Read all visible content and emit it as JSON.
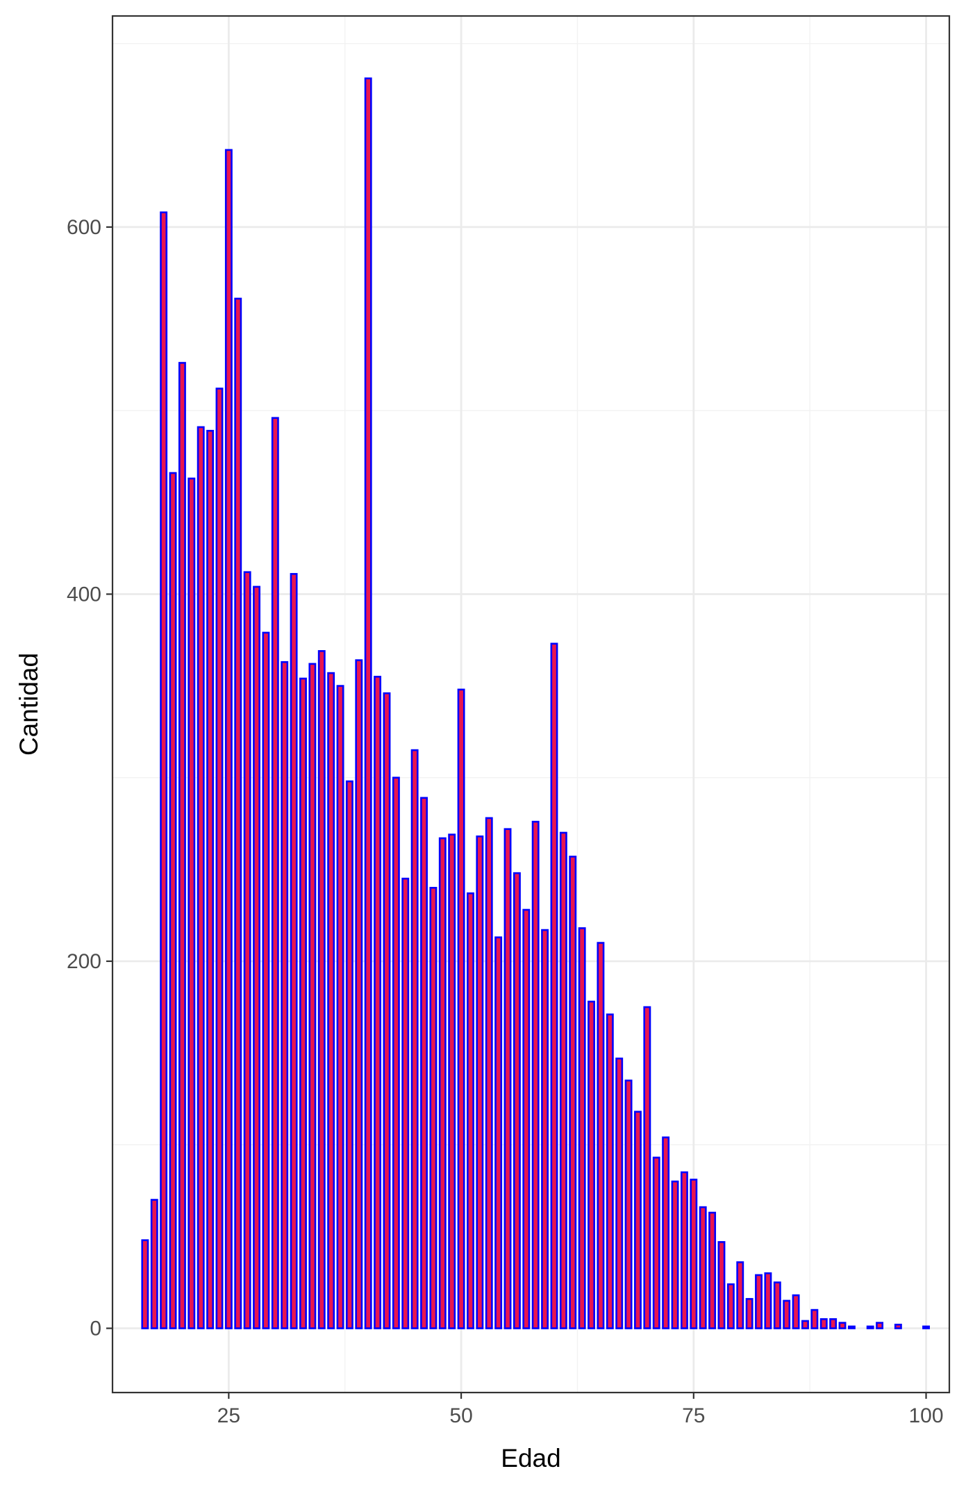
{
  "chart_data": {
    "type": "bar",
    "xlabel": "Edad",
    "ylabel": "Cantidad",
    "xlim": [
      12.5,
      102.5
    ],
    "ylim": [
      -35,
      715
    ],
    "x_ticks": [
      25,
      50,
      75,
      100
    ],
    "y_ticks": [
      0,
      200,
      400,
      600
    ],
    "y_minor_ticks": [
      100,
      300,
      500,
      700
    ],
    "grid": true,
    "fill_color": "#e8174f",
    "border_color": "#0000ff",
    "x": [
      16,
      17,
      18,
      19,
      20,
      21,
      22,
      23,
      24,
      25,
      26,
      27,
      28,
      29,
      30,
      31,
      32,
      33,
      34,
      35,
      36,
      37,
      38,
      39,
      40,
      41,
      42,
      43,
      44,
      45,
      46,
      47,
      48,
      49,
      50,
      51,
      52,
      53,
      54,
      55,
      56,
      57,
      58,
      59,
      60,
      61,
      62,
      63,
      64,
      65,
      66,
      67,
      68,
      69,
      70,
      71,
      72,
      73,
      74,
      75,
      76,
      77,
      78,
      79,
      80,
      81,
      82,
      83,
      84,
      85,
      86,
      87,
      88,
      89,
      90,
      91,
      92,
      93,
      94,
      95,
      96,
      97,
      98,
      99,
      100
    ],
    "values": [
      48,
      70,
      608,
      466,
      526,
      463,
      491,
      489,
      512,
      642,
      561,
      412,
      404,
      379,
      496,
      363,
      411,
      354,
      362,
      369,
      357,
      350,
      298,
      364,
      681,
      355,
      346,
      300,
      245,
      315,
      289,
      240,
      267,
      269,
      348,
      237,
      268,
      278,
      213,
      272,
      248,
      228,
      276,
      217,
      373,
      270,
      257,
      218,
      178,
      210,
      171,
      147,
      135,
      118,
      175,
      93,
      104,
      80,
      85,
      81,
      66,
      63,
      47,
      24,
      36,
      16,
      29,
      30,
      25,
      15,
      18,
      4,
      10,
      5,
      5,
      3,
      1,
      0,
      1,
      3,
      0,
      2,
      0,
      0,
      1
    ]
  }
}
